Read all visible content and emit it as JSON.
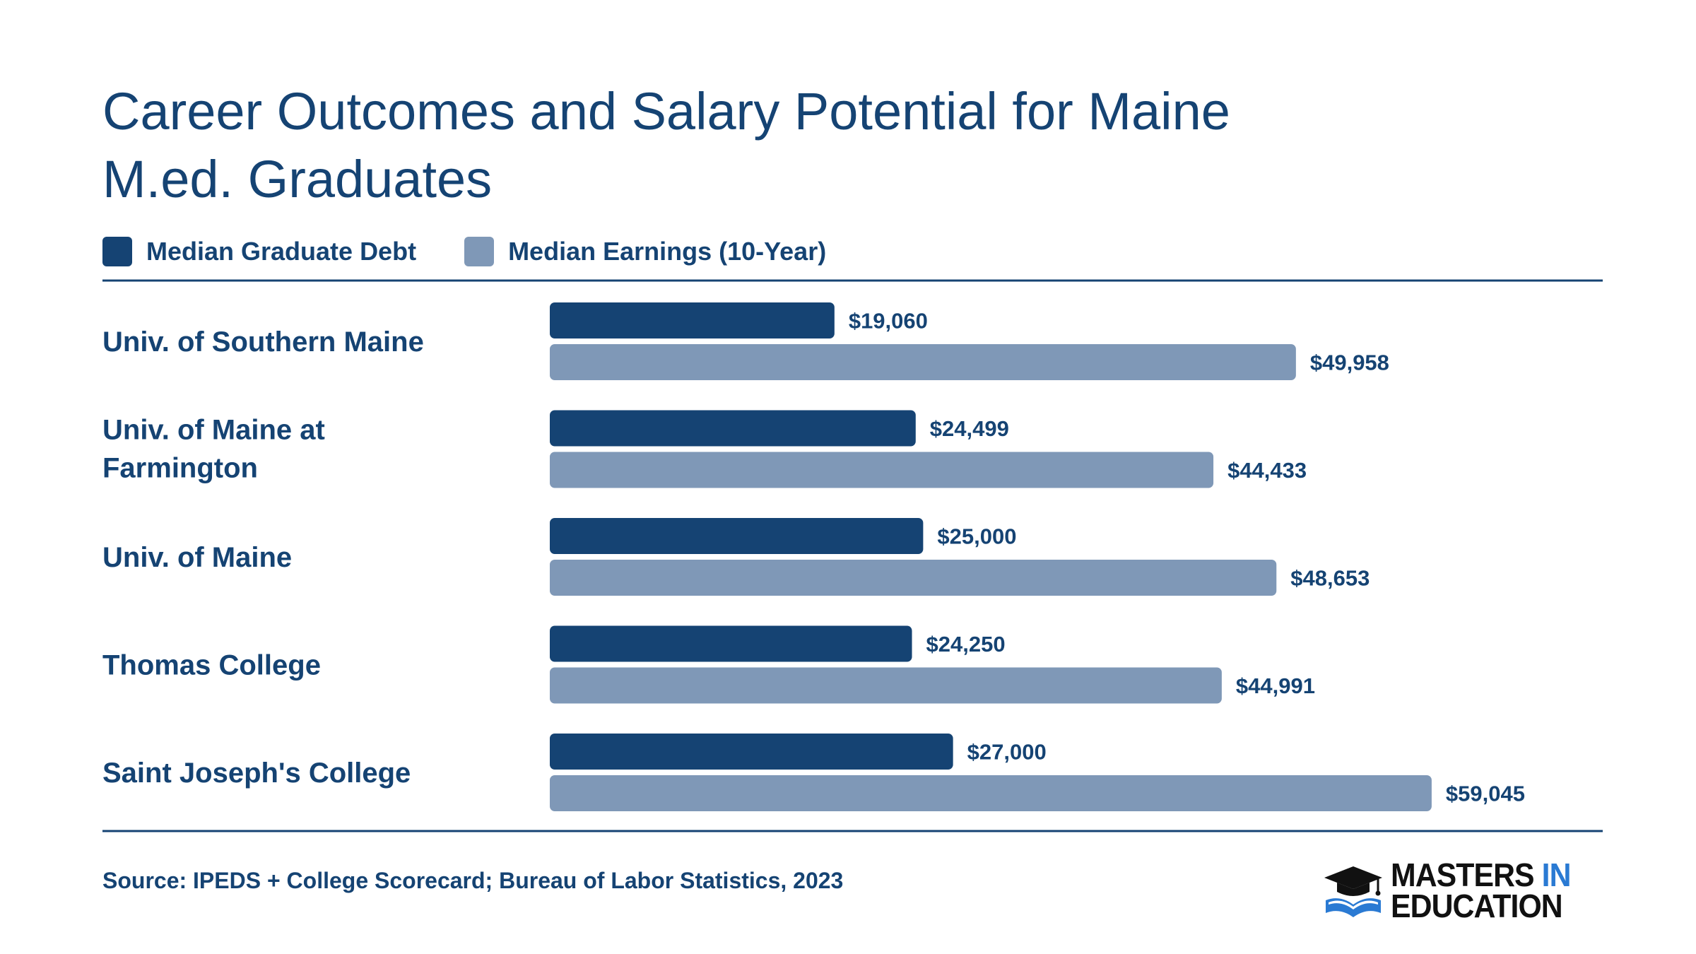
{
  "chart_data": {
    "type": "bar",
    "orientation": "horizontal",
    "title": "Career Outcomes and Salary Potential for Maine M.ed. Graduates",
    "categories": [
      "Univ. of Southern Maine",
      "Univ. of Maine at Farmington",
      "Univ. of Maine",
      "Thomas College",
      "Saint Joseph's College"
    ],
    "series": [
      {
        "name": "Median Graduate Debt",
        "color": "#154373",
        "values": [
          19060,
          24499,
          25000,
          24250,
          27000
        ],
        "labels": [
          "$19,060",
          "$24,499",
          "$25,000",
          "$24,250",
          "$27,000"
        ]
      },
      {
        "name": "Median Earnings (10-Year)",
        "color": "#7f98b7",
        "values": [
          49958,
          44433,
          48653,
          44991,
          59045
        ],
        "labels": [
          "$49,958",
          "$44,433",
          "$48,653",
          "$44,991",
          "$59,045"
        ]
      }
    ],
    "xlabel": "",
    "ylabel": "",
    "legend": "top-left",
    "grid": false
  },
  "source": "Source: IPEDS + College Scorecard; Bureau of Labor Statistics, 2023",
  "logo": {
    "line1_prefix": "MASTERS",
    "line1_highlight": "IN",
    "line2": "EDUCATION",
    "icon": "graduation-cap-book-icon"
  },
  "colors": {
    "text": "#154373",
    "rule": "#154373",
    "accent": "#2a7ad3"
  }
}
